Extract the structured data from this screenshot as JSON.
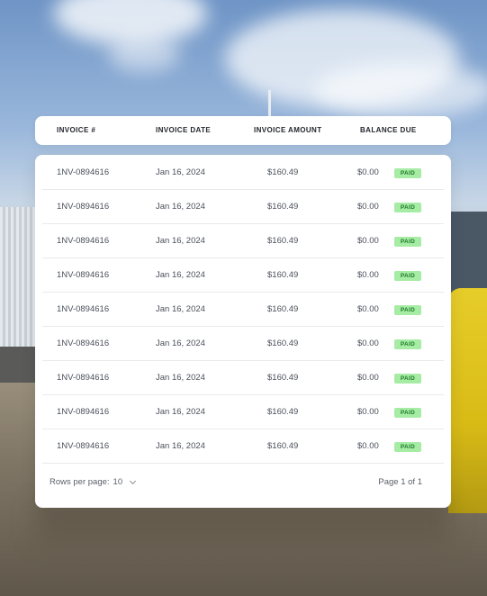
{
  "table": {
    "headers": {
      "invoice": "INVOICE #",
      "date": "INVOICE DATE",
      "amount": "INVOICE AMOUNT",
      "balance": "BALANCE DUE"
    },
    "rows": [
      {
        "invoice": "1NV-0894616",
        "date": "Jan 16, 2024",
        "amount": "$160.49",
        "balance": "$0.00",
        "status": "PAID"
      },
      {
        "invoice": "1NV-0894616",
        "date": "Jan 16, 2024",
        "amount": "$160.49",
        "balance": "$0.00",
        "status": "PAID"
      },
      {
        "invoice": "1NV-0894616",
        "date": "Jan 16, 2024",
        "amount": "$160.49",
        "balance": "$0.00",
        "status": "PAID"
      },
      {
        "invoice": "1NV-0894616",
        "date": "Jan 16, 2024",
        "amount": "$160.49",
        "balance": "$0.00",
        "status": "PAID"
      },
      {
        "invoice": "1NV-0894616",
        "date": "Jan 16, 2024",
        "amount": "$160.49",
        "balance": "$0.00",
        "status": "PAID"
      },
      {
        "invoice": "1NV-0894616",
        "date": "Jan 16, 2024",
        "amount": "$160.49",
        "balance": "$0.00",
        "status": "PAID"
      },
      {
        "invoice": "1NV-0894616",
        "date": "Jan 16, 2024",
        "amount": "$160.49",
        "balance": "$0.00",
        "status": "PAID"
      },
      {
        "invoice": "1NV-0894616",
        "date": "Jan 16, 2024",
        "amount": "$160.49",
        "balance": "$0.00",
        "status": "PAID"
      },
      {
        "invoice": "1NV-0894616",
        "date": "Jan 16, 2024",
        "amount": "$160.49",
        "balance": "$0.00",
        "status": "PAID"
      }
    ]
  },
  "footer": {
    "rows_per_page_label": "Rows per page:",
    "rows_per_page_value": "10",
    "page_info": "Page 1 of 1"
  },
  "icons": {
    "rows_per_page_dropdown": "chevron-down-icon"
  },
  "colors": {
    "paid_badge_bg": "#a6eca5",
    "paid_badge_text": "#1f7a29"
  }
}
